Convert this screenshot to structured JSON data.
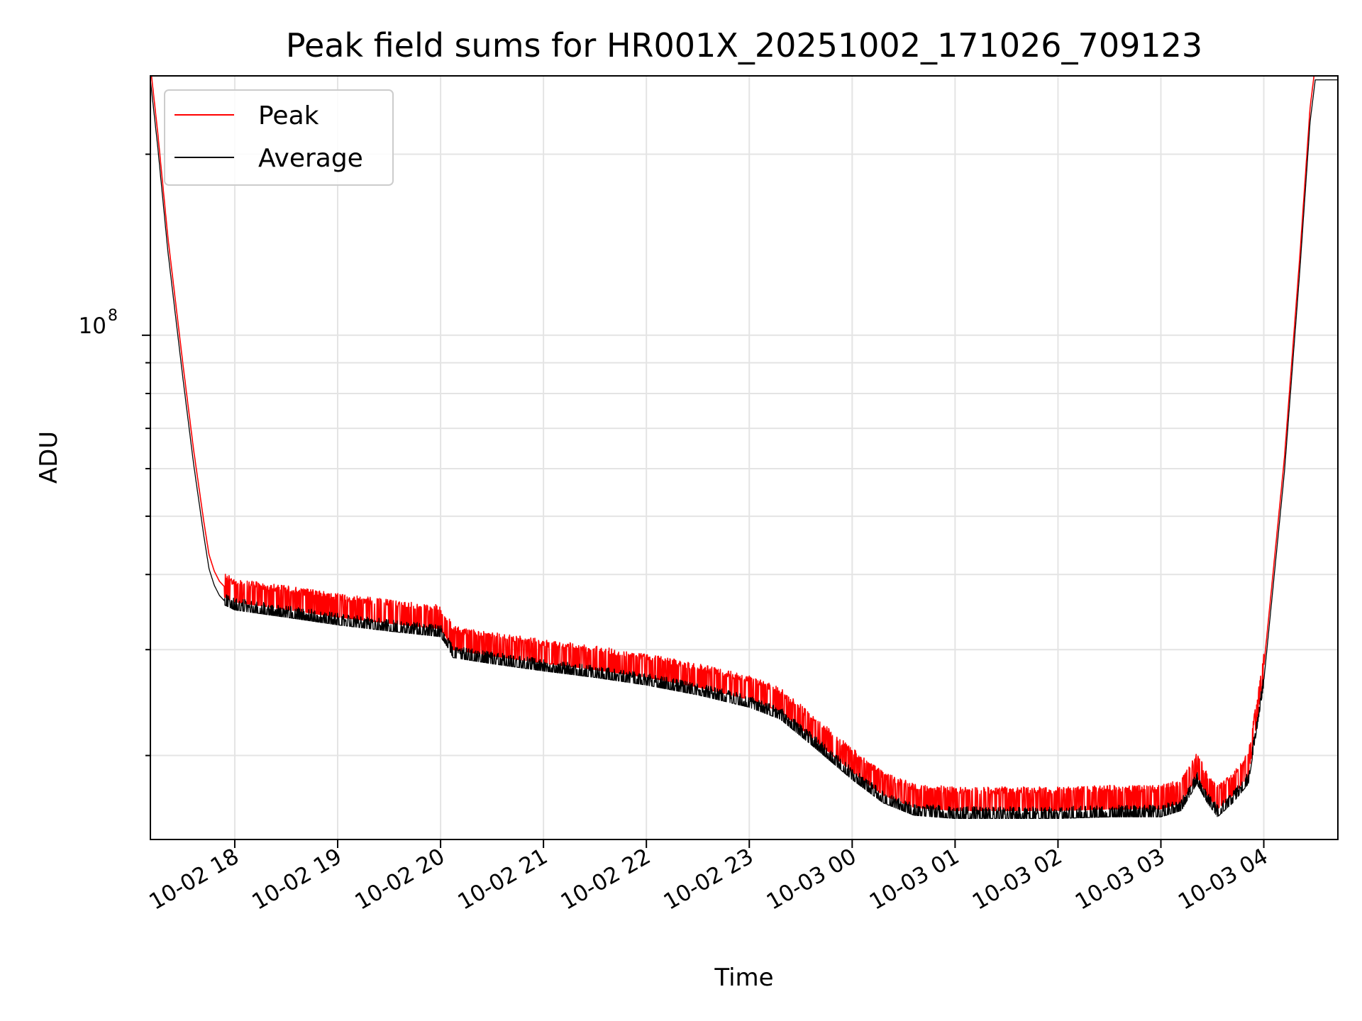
{
  "chart_data": {
    "type": "line",
    "title": "Peak field sums for HR001X_20251002_171026_709123",
    "xlabel": "Time",
    "ylabel": "ADU",
    "y_scale": "log",
    "ylim": [
      14500000,
      270000000
    ],
    "xlim_hours": [
      17.18,
      28.72
    ],
    "x_tick_labels": [
      "10-02 18",
      "10-02 19",
      "10-02 20",
      "10-02 21",
      "10-02 22",
      "10-02 23",
      "10-03 00",
      "10-03 01",
      "10-03 02",
      "10-03 03",
      "10-03 04"
    ],
    "x_tick_hours": [
      18,
      19,
      20,
      21,
      22,
      23,
      24,
      25,
      26,
      27,
      28
    ],
    "y_major_tick_label": {
      "base": "10",
      "exponent": "8",
      "value": 100000000
    },
    "y_minor_tick_values": [
      20000000,
      30000000,
      40000000,
      50000000,
      60000000,
      70000000,
      80000000,
      90000000,
      200000000
    ],
    "grid": true,
    "legend_position": "upper-left",
    "series": [
      {
        "name": "Peak",
        "color": "#ff0000",
        "envelope_offset": [
          1.0,
          1.08
        ],
        "x_hours": [
          17.18,
          17.25,
          17.35,
          17.5,
          17.6,
          17.7,
          17.75,
          17.8,
          17.85,
          17.9,
          18.0,
          18.5,
          19.0,
          19.5,
          20.0,
          20.08,
          20.12,
          20.5,
          21.0,
          21.5,
          22.0,
          22.5,
          23.0,
          23.3,
          23.6,
          24.0,
          24.3,
          24.6,
          25.0,
          25.5,
          26.0,
          26.5,
          27.0,
          27.2,
          27.35,
          27.45,
          27.55,
          27.7,
          27.85,
          28.0,
          28.2,
          28.35,
          28.45,
          28.5,
          28.72
        ],
        "y_values": [
          270000000,
          210000000,
          140000000,
          85000000,
          62000000,
          47000000,
          41500000,
          39000000,
          37500000,
          36700000,
          36000000,
          35000000,
          34000000,
          33200000,
          32500000,
          31000000,
          30000000,
          29300000,
          28500000,
          27800000,
          27000000,
          26000000,
          24800000,
          23700000,
          21500000,
          18800000,
          17200000,
          16400000,
          16200000,
          16200000,
          16200000,
          16300000,
          16300000,
          16700000,
          18500000,
          17200000,
          16300000,
          17200000,
          18500000,
          27000000,
          60000000,
          130000000,
          230000000,
          270000000,
          270000000
        ]
      },
      {
        "name": "Average",
        "color": "#000000",
        "envelope_offset": [
          0.97,
          1.0
        ],
        "x_hours": [
          17.18,
          17.25,
          17.35,
          17.5,
          17.6,
          17.7,
          17.75,
          17.8,
          17.85,
          17.9,
          18.0,
          18.5,
          19.0,
          19.5,
          20.0,
          20.08,
          20.12,
          20.5,
          21.0,
          21.5,
          22.0,
          22.5,
          23.0,
          23.3,
          23.6,
          24.0,
          24.3,
          24.6,
          25.0,
          25.5,
          26.0,
          26.5,
          27.0,
          27.2,
          27.35,
          27.45,
          27.55,
          27.7,
          27.85,
          28.0,
          28.2,
          28.35,
          28.45,
          28.5,
          28.72
        ],
        "y_values": [
          270000000,
          210000000,
          140000000,
          85000000,
          62000000,
          47000000,
          41500000,
          39000000,
          37500000,
          36700000,
          36000000,
          35000000,
          34000000,
          33200000,
          32500000,
          31000000,
          30000000,
          29300000,
          28500000,
          27800000,
          27000000,
          26000000,
          24800000,
          23700000,
          21500000,
          18800000,
          17200000,
          16400000,
          16200000,
          16200000,
          16200000,
          16300000,
          16300000,
          16700000,
          18500000,
          17200000,
          16300000,
          17200000,
          18500000,
          27000000,
          60000000,
          130000000,
          230000000,
          270000000,
          270000000
        ]
      }
    ]
  }
}
